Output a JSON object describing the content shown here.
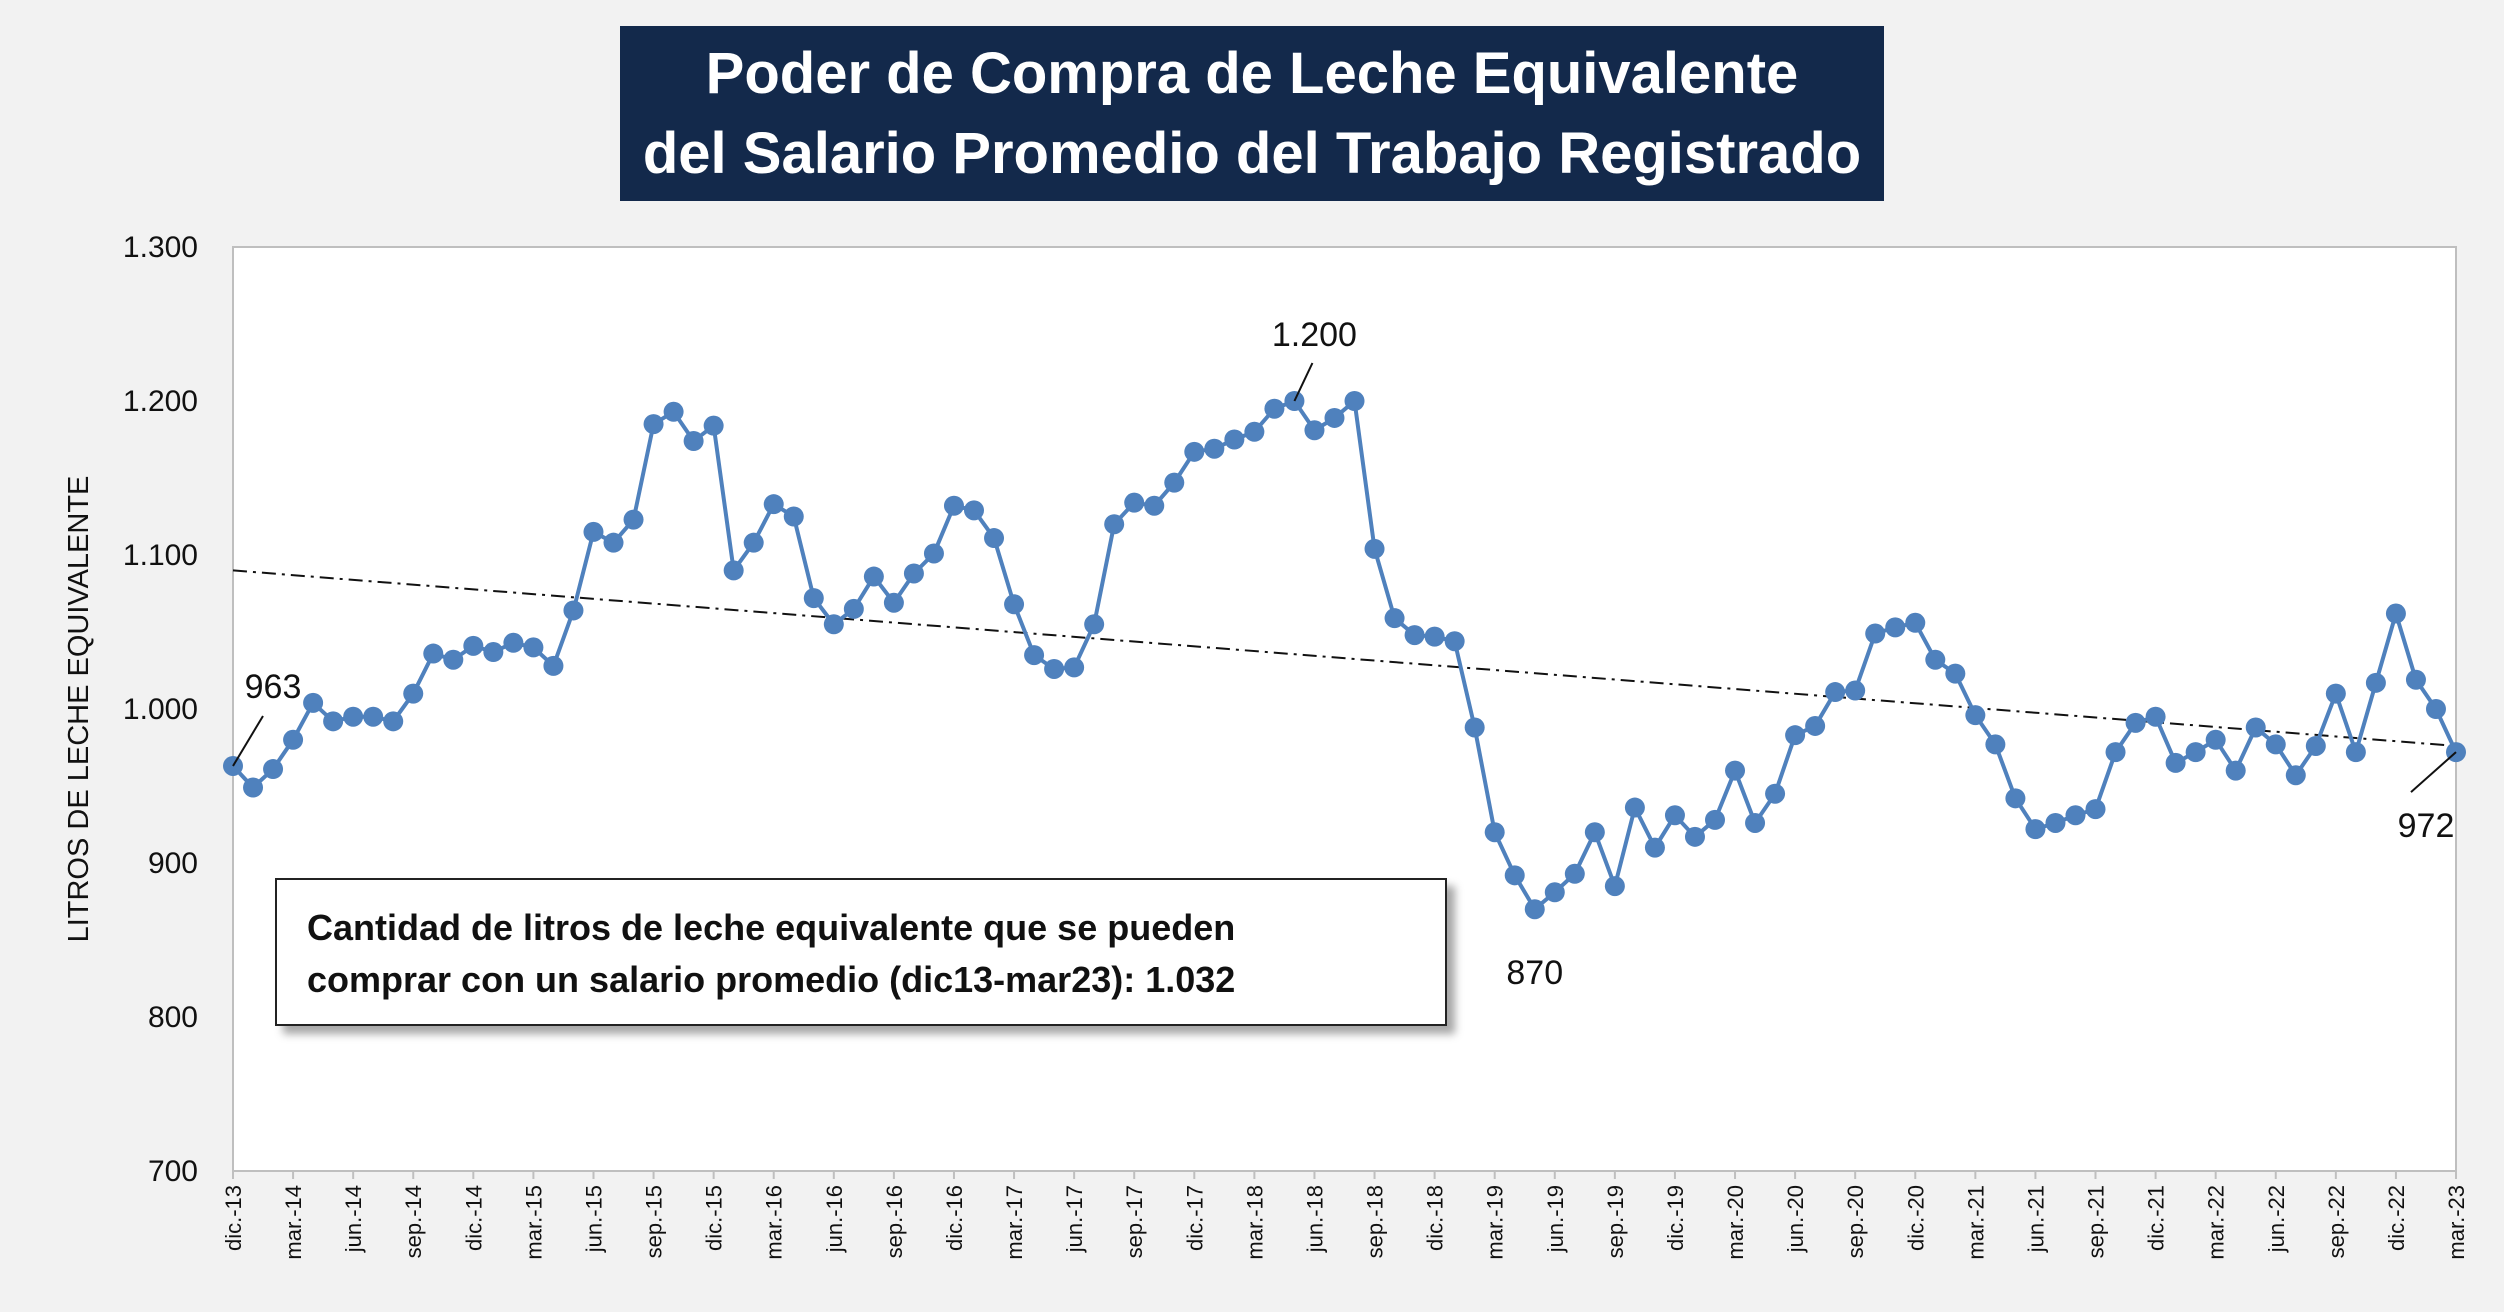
{
  "title": {
    "line1": "Poder de Compra de Leche Equivalente",
    "line2": "del Salario Promedio del Trabajo Registrado"
  },
  "info_box": {
    "line1": "Cantidad de litros de leche equivalente que se pueden",
    "line2": "comprar con un salario promedio (dic13-mar23): 1.032"
  },
  "colors": {
    "series": "#4f81bd",
    "title_bg": "#13294b",
    "trend": "#111111"
  },
  "chart_data": {
    "type": "line",
    "ylabel": "LITROS DE LECHE EQUIVALENTE",
    "ylim": [
      700,
      1300
    ],
    "yticks": [
      700,
      800,
      900,
      1000,
      1100,
      1200,
      1300
    ],
    "ytick_labels": [
      "700",
      "800",
      "900",
      "1.000",
      "1.100",
      "1.200",
      "1.300"
    ],
    "xtick_labels": [
      "dic.-13",
      "mar.-14",
      "jun.-14",
      "sep.-14",
      "dic.-14",
      "mar.-15",
      "jun.-15",
      "sep.-15",
      "dic.-15",
      "mar.-16",
      "jun.-16",
      "sep.-16",
      "dic.-16",
      "mar.-17",
      "jun.-17",
      "sep.-17",
      "dic.-17",
      "mar.-18",
      "jun.-18",
      "sep.-18",
      "dic.-18",
      "mar.-19",
      "jun.-19",
      "sep.-19",
      "dic.-19",
      "mar.-20",
      "jun.-20",
      "sep.-20",
      "dic.-20",
      "mar.-21",
      "jun.-21",
      "sep.-21",
      "dic.-21",
      "mar.-22",
      "jun.-22",
      "sep.-22",
      "dic.-22",
      "mar.-23"
    ],
    "start_label": "dic.-13",
    "end_label": "mar.-23",
    "values": [
      963,
      949,
      961,
      980,
      1004,
      992,
      995,
      995,
      992,
      1010,
      1036,
      1032,
      1041,
      1037,
      1043,
      1040,
      1028,
      1064,
      1115,
      1108,
      1123,
      1185,
      1193,
      1174,
      1184,
      1090,
      1108,
      1133,
      1125,
      1072,
      1055,
      1065,
      1086,
      1069,
      1088,
      1101,
      1132,
      1129,
      1111,
      1068,
      1035,
      1026,
      1027,
      1055,
      1120,
      1134,
      1132,
      1147,
      1167,
      1169,
      1175,
      1180,
      1195,
      1200,
      1181,
      1189,
      1200,
      1104,
      1059,
      1048,
      1047,
      1044,
      988,
      920,
      892,
      870,
      881,
      893,
      920,
      885,
      936,
      910,
      931,
      917,
      928,
      960,
      926,
      945,
      983,
      989,
      1011,
      1012,
      1049,
      1053,
      1056,
      1032,
      1023,
      996,
      977,
      942,
      922,
      926,
      931,
      935,
      972,
      991,
      995,
      965,
      972,
      980,
      960,
      988,
      977,
      957,
      976,
      1010,
      972,
      1017,
      1062,
      1019,
      1000,
      972
    ],
    "trend": {
      "start": 1090,
      "end": 976,
      "style": "dash-dot"
    },
    "annotations": [
      {
        "label": "963",
        "index": 0
      },
      {
        "label": "1.200",
        "index": 53
      },
      {
        "label": "870",
        "index": 65
      },
      {
        "label": "972",
        "index": 111
      }
    ],
    "grid": false,
    "legend": "none"
  }
}
